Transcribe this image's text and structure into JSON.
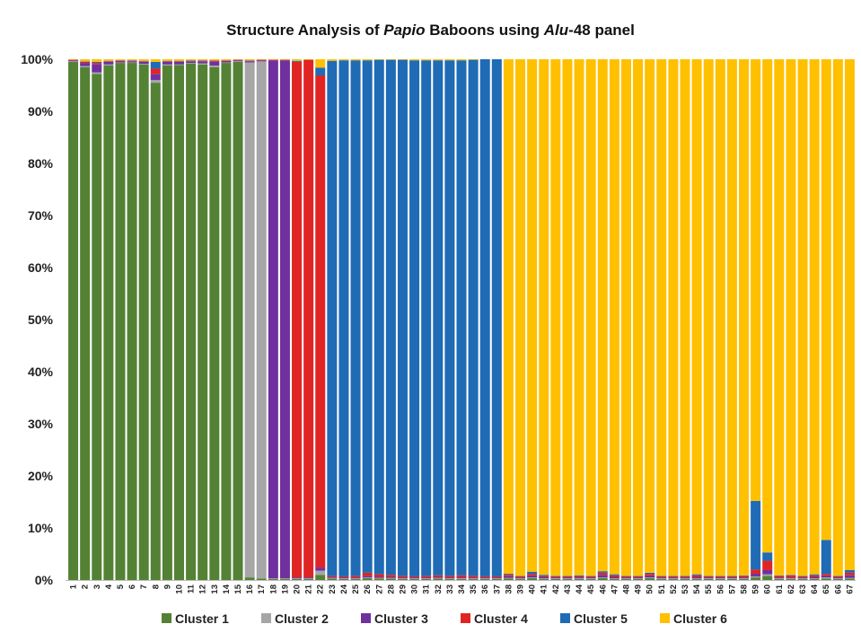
{
  "title": {
    "parts": [
      {
        "text": "Structure Analysis of ",
        "italic": false
      },
      {
        "text": "Papio",
        "italic": true
      },
      {
        "text": " Baboons using ",
        "italic": false
      },
      {
        "text": "Alu",
        "italic": true
      },
      {
        "text": "-48 panel",
        "italic": false
      }
    ]
  },
  "chart_data": {
    "type": "bar",
    "stacked": true,
    "title": "Structure Analysis of Papio Baboons using Alu-48 panel",
    "xlabel": "",
    "ylabel": "",
    "ylim": [
      0,
      100
    ],
    "y_tick_labels": [
      "0%",
      "10%",
      "20%",
      "30%",
      "40%",
      "50%",
      "60%",
      "70%",
      "80%",
      "90%",
      "100%"
    ],
    "grid": false,
    "legend_position": "bottom",
    "categories": [
      "1",
      "2",
      "3",
      "4",
      "5",
      "6",
      "7",
      "8",
      "9",
      "10",
      "11",
      "12",
      "13",
      "14",
      "15",
      "16",
      "17",
      "18",
      "19",
      "20",
      "21",
      "22",
      "23",
      "24",
      "25",
      "26",
      "27",
      "28",
      "29",
      "30",
      "31",
      "32",
      "33",
      "34",
      "35",
      "36",
      "37",
      "38",
      "39",
      "40",
      "41",
      "42",
      "43",
      "44",
      "45",
      "46",
      "47",
      "48",
      "49",
      "50",
      "51",
      "52",
      "53",
      "54",
      "55",
      "56",
      "57",
      "58",
      "59",
      "60",
      "61",
      "62",
      "63",
      "64",
      "65",
      "66",
      "67"
    ],
    "series": [
      {
        "name": "Cluster 1",
        "color": "#548235",
        "values": [
          99.5,
          98.5,
          97.2,
          98.8,
          99.3,
          99.3,
          99.0,
          95.5,
          98.8,
          98.9,
          99.2,
          99.0,
          98.5,
          99.3,
          99.5,
          0.5,
          0.3,
          0.2,
          0.2,
          0.2,
          0.2,
          1.0,
          0.3,
          0.2,
          0.2,
          0.4,
          0.3,
          0.3,
          0.2,
          0.2,
          0.2,
          0.3,
          0.2,
          0.2,
          0.2,
          0.2,
          0.2,
          0.3,
          0.2,
          0.4,
          0.2,
          0.2,
          0.2,
          0.2,
          0.2,
          0.4,
          0.2,
          0.2,
          0.2,
          0.4,
          0.2,
          0.2,
          0.2,
          0.2,
          0.2,
          0.2,
          0.2,
          0.2,
          0.5,
          0.8,
          0.2,
          0.2,
          0.2,
          0.2,
          0.3,
          0.2,
          0.3
        ]
      },
      {
        "name": "Cluster 2",
        "color": "#a6a6a6",
        "values": [
          0.1,
          0.2,
          0.3,
          0.2,
          0.1,
          0.1,
          0.1,
          0.5,
          0.2,
          0.1,
          0.1,
          0.2,
          0.3,
          0.1,
          0.1,
          98.9,
          99.3,
          0.1,
          0.1,
          0.1,
          0.1,
          0.8,
          0.1,
          0.1,
          0.1,
          0.1,
          0.1,
          0.1,
          0.1,
          0.1,
          0.1,
          0.1,
          0.1,
          0.1,
          0.1,
          0.1,
          0.1,
          0.1,
          0.1,
          0.1,
          0.1,
          0.1,
          0.1,
          0.1,
          0.1,
          0.1,
          0.1,
          0.1,
          0.1,
          0.1,
          0.1,
          0.1,
          0.1,
          0.1,
          0.1,
          0.1,
          0.1,
          0.1,
          0.2,
          0.3,
          0.1,
          0.1,
          0.1,
          0.1,
          0.2,
          0.1,
          0.1
        ]
      },
      {
        "name": "Cluster 3",
        "color": "#7030a0",
        "values": [
          0.2,
          0.6,
          1.5,
          0.5,
          0.3,
          0.2,
          0.4,
          1.2,
          0.5,
          0.5,
          0.3,
          0.4,
          0.7,
          0.3,
          0.2,
          0.2,
          0.2,
          99.5,
          99.5,
          0.2,
          0.2,
          0.6,
          0.2,
          0.2,
          0.2,
          0.3,
          0.2,
          0.2,
          0.2,
          0.2,
          0.2,
          0.2,
          0.2,
          0.2,
          0.2,
          0.2,
          0.2,
          0.3,
          0.2,
          0.4,
          0.3,
          0.2,
          0.2,
          0.2,
          0.2,
          0.5,
          0.3,
          0.2,
          0.2,
          0.4,
          0.2,
          0.2,
          0.2,
          0.3,
          0.2,
          0.2,
          0.2,
          0.2,
          0.5,
          0.8,
          0.2,
          0.2,
          0.2,
          0.3,
          0.4,
          0.2,
          0.5
        ]
      },
      {
        "name": "Cluster 4",
        "color": "#e02424",
        "values": [
          0.1,
          0.2,
          0.3,
          0.1,
          0.1,
          0.1,
          0.1,
          1.0,
          0.1,
          0.1,
          0.1,
          0.1,
          0.2,
          0.1,
          0.1,
          0.1,
          0.1,
          0.1,
          0.1,
          99.0,
          99.4,
          94.5,
          0.2,
          0.2,
          0.3,
          0.6,
          0.5,
          0.4,
          0.3,
          0.2,
          0.3,
          0.3,
          0.3,
          0.4,
          0.3,
          0.2,
          0.2,
          0.3,
          0.2,
          0.3,
          0.2,
          0.2,
          0.2,
          0.2,
          0.2,
          0.4,
          0.3,
          0.2,
          0.2,
          0.3,
          0.2,
          0.2,
          0.2,
          0.3,
          0.2,
          0.2,
          0.2,
          0.3,
          0.8,
          1.8,
          0.3,
          0.4,
          0.2,
          0.3,
          0.3,
          0.2,
          0.5
        ]
      },
      {
        "name": "Cluster 5",
        "color": "#1f6bb5",
        "values": [
          0.0,
          0.1,
          0.2,
          0.1,
          0.0,
          0.1,
          0.1,
          1.3,
          0.1,
          0.1,
          0.1,
          0.1,
          0.1,
          0.0,
          0.0,
          0.1,
          0.0,
          0.0,
          0.0,
          0.2,
          0.0,
          1.5,
          98.9,
          99.1,
          99.0,
          98.4,
          98.8,
          98.9,
          99.1,
          99.1,
          99.0,
          98.9,
          99.0,
          98.9,
          99.1,
          99.3,
          99.3,
          0.2,
          0.1,
          0.4,
          0.2,
          0.1,
          0.1,
          0.2,
          0.1,
          0.3,
          0.2,
          0.1,
          0.1,
          0.2,
          0.1,
          0.1,
          0.1,
          0.2,
          0.1,
          0.1,
          0.1,
          0.1,
          13.2,
          1.6,
          0.1,
          0.1,
          0.1,
          0.2,
          6.5,
          0.1,
          0.5
        ]
      },
      {
        "name": "Cluster 6",
        "color": "#ffc000",
        "values": [
          0.1,
          0.4,
          0.5,
          0.3,
          0.2,
          0.2,
          0.3,
          0.5,
          0.3,
          0.3,
          0.2,
          0.2,
          0.2,
          0.2,
          0.1,
          0.2,
          0.1,
          0.1,
          0.1,
          0.3,
          0.1,
          1.6,
          0.3,
          0.2,
          0.2,
          0.2,
          0.1,
          0.1,
          0.1,
          0.2,
          0.2,
          0.2,
          0.2,
          0.2,
          0.1,
          0.0,
          0.0,
          98.8,
          99.2,
          98.4,
          99.0,
          99.2,
          99.2,
          99.1,
          99.2,
          98.3,
          98.9,
          99.2,
          99.2,
          98.6,
          99.2,
          99.2,
          99.2,
          98.9,
          99.2,
          99.2,
          99.2,
          99.1,
          84.8,
          94.7,
          99.1,
          99.0,
          99.2,
          98.9,
          92.3,
          99.2,
          98.1
        ]
      }
    ]
  }
}
